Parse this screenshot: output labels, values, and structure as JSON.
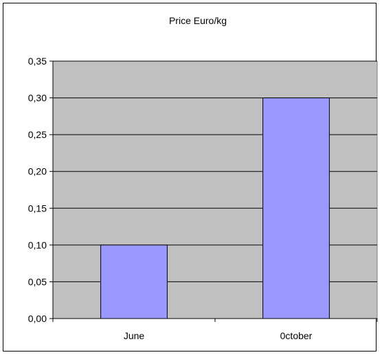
{
  "chart_data": {
    "type": "bar",
    "title": "Price Euro/kg",
    "categories": [
      "June",
      "0ctober"
    ],
    "values": [
      0.1,
      0.3
    ],
    "ylim": [
      0,
      0.35
    ],
    "yticks": [
      "0,00",
      "0,05",
      "0,10",
      "0,15",
      "0,20",
      "0,25",
      "0,30",
      "0,35"
    ],
    "ytick_values": [
      0,
      0.05,
      0.1,
      0.15,
      0.2,
      0.25,
      0.3,
      0.35
    ],
    "grid": true,
    "legend": "none",
    "colors": {
      "bar_fill": "#9999ff",
      "plot_background": "#c0c0c0",
      "gridline": "#000000"
    }
  }
}
